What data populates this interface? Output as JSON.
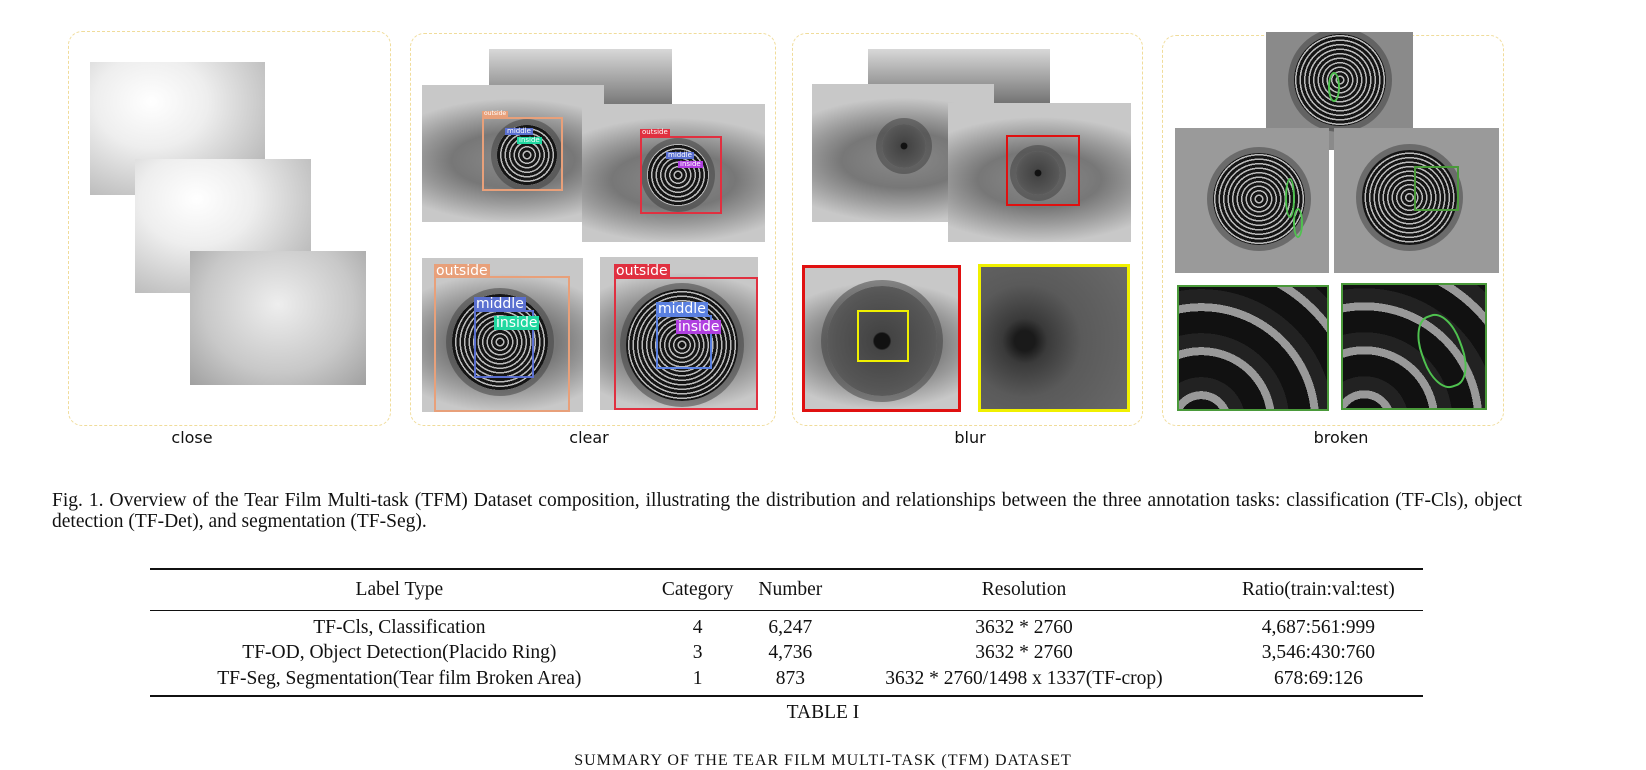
{
  "figure": {
    "panels": [
      {
        "label": "close"
      },
      {
        "label": "clear",
        "annotations": {
          "outside": "outside",
          "middle": "middle",
          "inside": "inside"
        }
      },
      {
        "label": "blur"
      },
      {
        "label": "broken"
      }
    ],
    "caption": "Fig. 1.   Overview of the Tear Film Multi-task (TFM) Dataset composition, illustrating the distribution and relationships between the three annotation tasks: classification (TF-Cls), object detection (TF-Det), and segmentation (TF-Seg)."
  },
  "table": {
    "headers": [
      "Label Type",
      "Category",
      "Number",
      "Resolution",
      "Ratio(train:val:test)"
    ],
    "rows": [
      [
        "TF-Cls, Classification",
        "4",
        "6,247",
        "3632 * 2760",
        "4,687:561:999"
      ],
      [
        "TF-OD, Object Detection(Placido Ring)",
        "3",
        "4,736",
        "3632 * 2760",
        "3,546:430:760"
      ],
      [
        "TF-Seg, Segmentation(Tear film Broken Area)",
        "1",
        "873",
        "3632 * 2760/1498 x 1337(TF-crop)",
        "678:69:126"
      ]
    ],
    "label": "TABLE I",
    "title": "SUMMARY OF THE TEAR FILM MULTI-TASK (TFM) DATASET"
  },
  "colors": {
    "panel_border": "#f0dc9a",
    "outside_a": "#e8a07a",
    "outside_b": "#e03040",
    "middle": "#5a6fd0",
    "inside_a": "#20d8a0",
    "inside_b": "#b040e0",
    "blur_red": "#e01010",
    "blur_yellow": "#f0f000",
    "broken_green": "#4a9a3a"
  }
}
